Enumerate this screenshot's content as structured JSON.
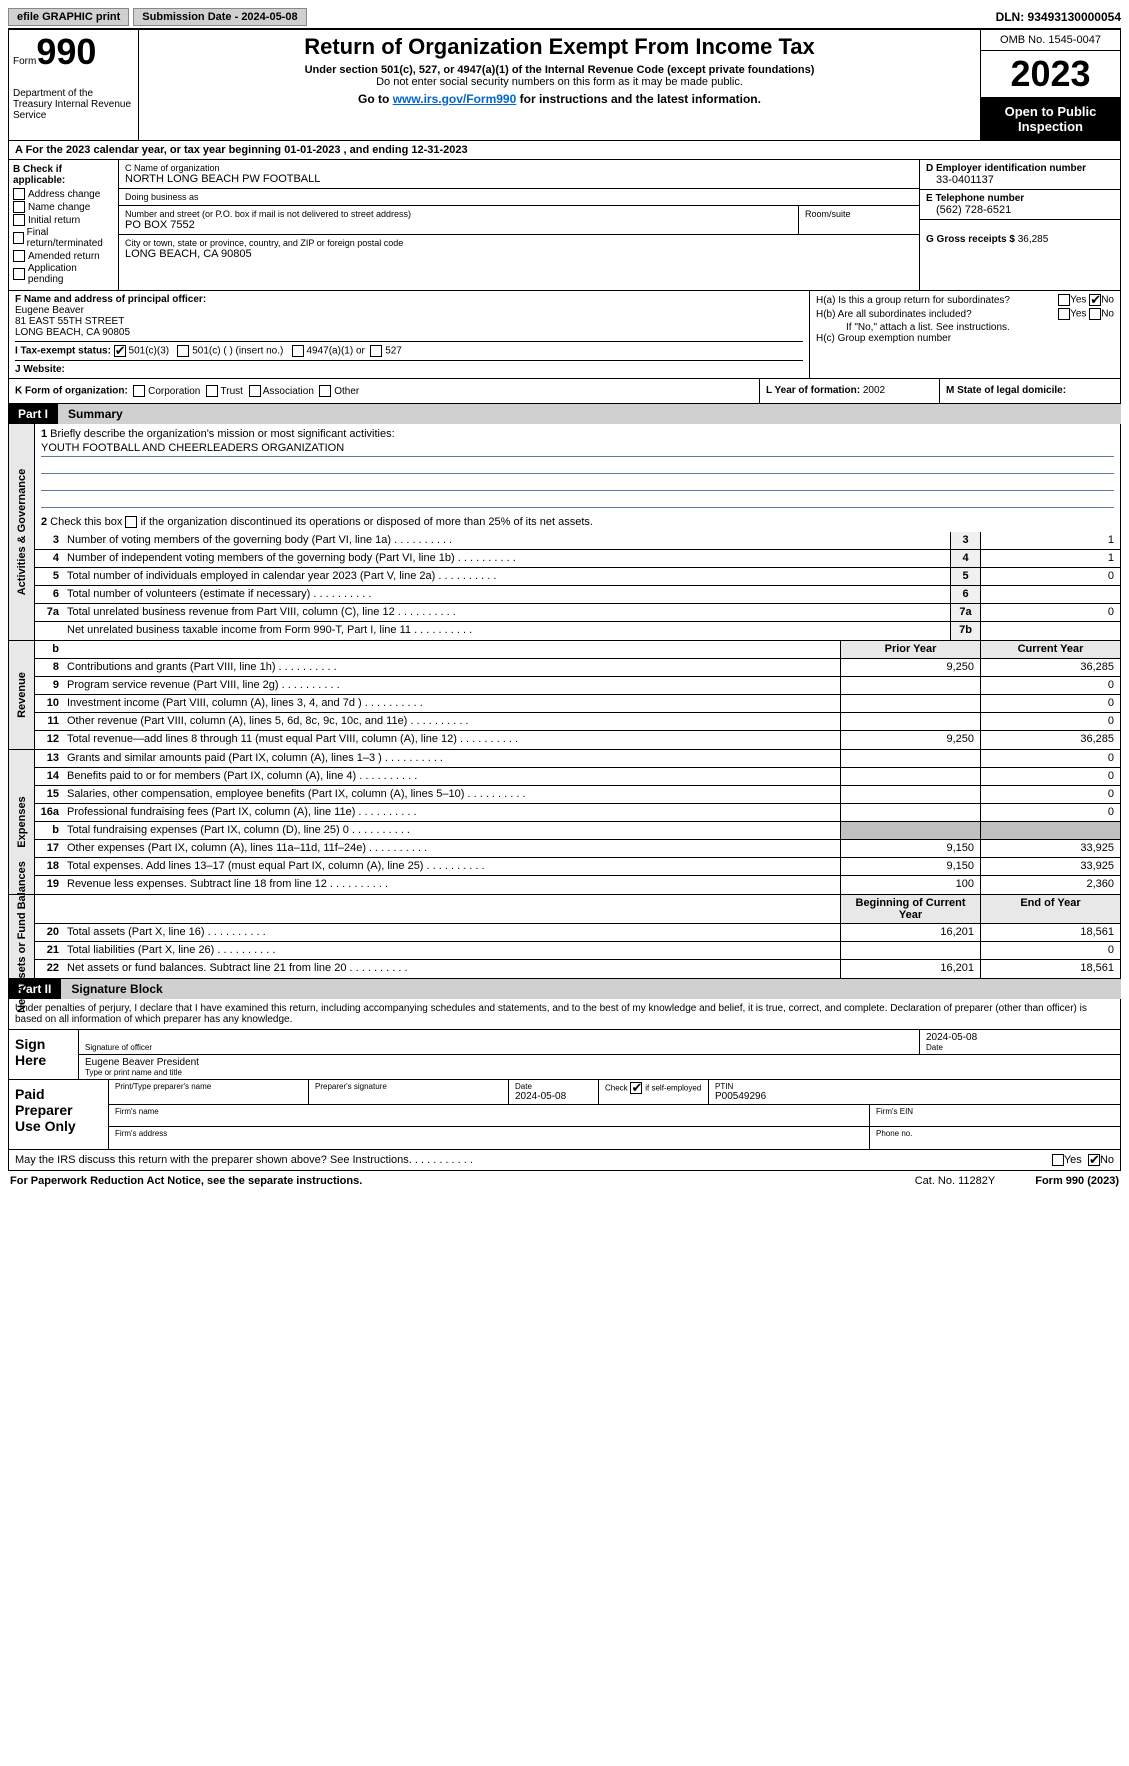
{
  "topbar": {
    "efile": "efile GRAPHIC print",
    "submission": "Submission Date - 2024-05-08",
    "dln": "DLN: 93493130000054"
  },
  "header": {
    "form_prefix": "Form",
    "form_number": "990",
    "dept": "Department of the Treasury Internal Revenue Service",
    "title": "Return of Organization Exempt From Income Tax",
    "sub1": "Under section 501(c), 527, or 4947(a)(1) of the Internal Revenue Code (except private foundations)",
    "sub2": "Do not enter social security numbers on this form as it may be made public.",
    "goto_prefix": "Go to ",
    "goto_link": "www.irs.gov/Form990",
    "goto_suffix": " for instructions and the latest information.",
    "omb": "OMB No. 1545-0047",
    "year": "2023",
    "open": "Open to Public Inspection"
  },
  "row_a": "A For the 2023 calendar year, or tax year beginning 01-01-2023   , and ending 12-31-2023",
  "col_b": {
    "hdr": "B Check if applicable:",
    "items": [
      "Address change",
      "Name change",
      "Initial return",
      "Final return/terminated",
      "Amended return",
      "Application pending"
    ]
  },
  "col_c": {
    "name_label": "C Name of organization",
    "name": "NORTH LONG BEACH PW FOOTBALL",
    "dba_label": "Doing business as",
    "dba": "",
    "street_label": "Number and street (or P.O. box if mail is not delivered to street address)",
    "street": "PO BOX 7552",
    "room_label": "Room/suite",
    "room": "",
    "city_label": "City or town, state or province, country, and ZIP or foreign postal code",
    "city": "LONG BEACH, CA  90805"
  },
  "col_d": {
    "ein_label": "D Employer identification number",
    "ein": "33-0401137",
    "phone_label": "E Telephone number",
    "phone": "(562) 728-6521",
    "gross_label": "G Gross receipts $",
    "gross": "36,285"
  },
  "col_f": {
    "label": "F  Name and address of principal officer:",
    "name": "Eugene Beaver",
    "addr1": "81 EAST 55TH STREET",
    "addr2": "LONG BEACH, CA  90805"
  },
  "col_h": {
    "ha_label": "H(a)  Is this a group return for subordinates?",
    "hb_label": "H(b)  Are all subordinates included?",
    "hb_note": "If \"No,\" attach a list. See instructions.",
    "hc_label": "H(c)  Group exemption number",
    "ha_no_checked": true,
    "yes": "Yes",
    "no": "No"
  },
  "row_i": {
    "label": "I   Tax-exempt status:",
    "opt1": "501(c)(3)",
    "opt2": "501(c) (  ) (insert no.)",
    "opt3": "4947(a)(1) or",
    "opt4": "527",
    "checked_501c3": true
  },
  "row_j": {
    "label": "J   Website:",
    "val": ""
  },
  "row_k": {
    "label": "K Form of organization:",
    "opts": [
      "Corporation",
      "Trust",
      "Association",
      "Other"
    ]
  },
  "row_l": {
    "label": "L Year of formation:",
    "val": "2002"
  },
  "row_m": {
    "label": "M State of legal domicile:",
    "val": ""
  },
  "part1": {
    "tag": "Part I",
    "title": "Summary"
  },
  "summary": {
    "sections": [
      {
        "label": "Activities & Governance",
        "line1": {
          "num": "1",
          "text": "Briefly describe the organization's mission or most significant activities:",
          "mission": "YOUTH FOOTBALL AND CHEERLEADERS ORGANIZATION"
        },
        "line2": {
          "num": "2",
          "text": "Check this box      if the organization discontinued its operations or disposed of more than 25% of its net assets."
        },
        "rows": [
          {
            "num": "3",
            "text": "Number of voting members of the governing body (Part VI, line 1a)",
            "box": "3",
            "curr": "1"
          },
          {
            "num": "4",
            "text": "Number of independent voting members of the governing body (Part VI, line 1b)",
            "box": "4",
            "curr": "1"
          },
          {
            "num": "5",
            "text": "Total number of individuals employed in calendar year 2023 (Part V, line 2a)",
            "box": "5",
            "curr": "0"
          },
          {
            "num": "6",
            "text": "Total number of volunteers (estimate if necessary)",
            "box": "6",
            "curr": ""
          },
          {
            "num": "7a",
            "text": "Total unrelated business revenue from Part VIII, column (C), line 12",
            "box": "7a",
            "curr": "0"
          },
          {
            "num": "",
            "text": "Net unrelated business taxable income from Form 990-T, Part I, line 11",
            "box": "7b",
            "curr": ""
          }
        ]
      },
      {
        "label": "Revenue",
        "hdr": {
          "b": "b",
          "prior": "Prior Year",
          "curr": "Current Year"
        },
        "rows": [
          {
            "num": "8",
            "text": "Contributions and grants (Part VIII, line 1h)",
            "prior": "9,250",
            "curr": "36,285"
          },
          {
            "num": "9",
            "text": "Program service revenue (Part VIII, line 2g)",
            "prior": "",
            "curr": "0"
          },
          {
            "num": "10",
            "text": "Investment income (Part VIII, column (A), lines 3, 4, and 7d )",
            "prior": "",
            "curr": "0"
          },
          {
            "num": "11",
            "text": "Other revenue (Part VIII, column (A), lines 5, 6d, 8c, 9c, 10c, and 11e)",
            "prior": "",
            "curr": "0"
          },
          {
            "num": "12",
            "text": "Total revenue—add lines 8 through 11 (must equal Part VIII, column (A), line 12)",
            "prior": "9,250",
            "curr": "36,285"
          }
        ]
      },
      {
        "label": "Expenses",
        "rows": [
          {
            "num": "13",
            "text": "Grants and similar amounts paid (Part IX, column (A), lines 1–3 )",
            "prior": "",
            "curr": "0"
          },
          {
            "num": "14",
            "text": "Benefits paid to or for members (Part IX, column (A), line 4)",
            "prior": "",
            "curr": "0"
          },
          {
            "num": "15",
            "text": "Salaries, other compensation, employee benefits (Part IX, column (A), lines 5–10)",
            "prior": "",
            "curr": "0"
          },
          {
            "num": "16a",
            "text": "Professional fundraising fees (Part IX, column (A), line 11e)",
            "prior": "",
            "curr": "0"
          },
          {
            "num": "b",
            "text": "Total fundraising expenses (Part IX, column (D), line 25) 0",
            "prior": "shade",
            "curr": "shade"
          },
          {
            "num": "17",
            "text": "Other expenses (Part IX, column (A), lines 11a–11d, 11f–24e)",
            "prior": "9,150",
            "curr": "33,925"
          },
          {
            "num": "18",
            "text": "Total expenses. Add lines 13–17 (must equal Part IX, column (A), line 25)",
            "prior": "9,150",
            "curr": "33,925"
          },
          {
            "num": "19",
            "text": "Revenue less expenses. Subtract line 18 from line 12",
            "prior": "100",
            "curr": "2,360"
          }
        ]
      },
      {
        "label": "Net Assets or Fund Balances",
        "hdr": {
          "prior": "Beginning of Current Year",
          "curr": "End of Year"
        },
        "rows": [
          {
            "num": "20",
            "text": "Total assets (Part X, line 16)",
            "prior": "16,201",
            "curr": "18,561"
          },
          {
            "num": "21",
            "text": "Total liabilities (Part X, line 26)",
            "prior": "",
            "curr": "0"
          },
          {
            "num": "22",
            "text": "Net assets or fund balances. Subtract line 21 from line 20",
            "prior": "16,201",
            "curr": "18,561"
          }
        ]
      }
    ]
  },
  "part2": {
    "tag": "Part II",
    "title": "Signature Block"
  },
  "sig_text": "Under penalties of perjury, I declare that I have examined this return, including accompanying schedules and statements, and to the best of my knowledge and belief, it is true, correct, and complete. Declaration of preparer (other than officer) is based on all information of which preparer has any knowledge.",
  "sign_here": {
    "label": "Sign Here",
    "date": "2024-05-08",
    "sig_label": "Signature of officer",
    "name": "Eugene Beaver President",
    "name_label": "Type or print name and title",
    "date_label": "Date"
  },
  "prep": {
    "label": "Paid Preparer Use Only",
    "col1": "Print/Type preparer's name",
    "col2": "Preparer's signature",
    "col3_label": "Date",
    "col3": "2024-05-08",
    "col4_label": "Check",
    "col4_text": "if self-employed",
    "col4_checked": true,
    "col5_label": "PTIN",
    "col5": "P00549296",
    "firm_name": "Firm's name",
    "firm_ein": "Firm's EIN",
    "firm_addr": "Firm's address",
    "phone": "Phone no."
  },
  "discuss": {
    "text": "May the IRS discuss this return with the preparer shown above? See Instructions.",
    "yes": "Yes",
    "no": "No",
    "no_checked": true
  },
  "footer": {
    "left": "For Paperwork Reduction Act Notice, see the separate instructions.",
    "mid": "Cat. No. 11282Y",
    "right_prefix": "Form ",
    "right_form": "990",
    "right_suffix": " (2023)"
  }
}
